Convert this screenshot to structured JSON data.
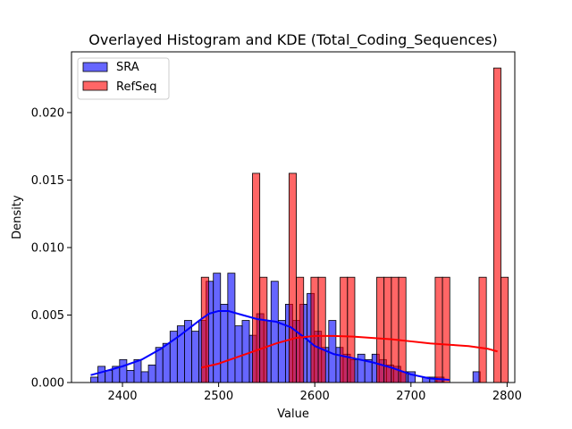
{
  "chart_data": {
    "type": "bar",
    "title": "Overlayed Histogram and KDE (Total_Coding_Sequences)",
    "xlabel": "Value",
    "ylabel": "Density",
    "xlim": [
      2347,
      2808
    ],
    "ylim": [
      0,
      0.0245
    ],
    "xticks": [
      2400,
      2500,
      2600,
      2700,
      2800
    ],
    "yticks": [
      0.0,
      0.005,
      0.01,
      0.015,
      0.02
    ],
    "ytick_labels": [
      "0.000",
      "0.005",
      "0.010",
      "0.015",
      "0.020"
    ],
    "grid": false,
    "legend_position": "top-left",
    "series": [
      {
        "name": "SRA",
        "color": "#0000ff",
        "bin_start": 2367,
        "bin_width": 7.5,
        "values": [
          0.0004,
          0.0012,
          0.0009,
          0.0012,
          0.0017,
          0.0009,
          0.0017,
          0.0008,
          0.0013,
          0.0026,
          0.0029,
          0.0038,
          0.0042,
          0.0046,
          0.0038,
          0.0046,
          0.0075,
          0.0081,
          0.0058,
          0.0081,
          0.0042,
          0.0046,
          0.0035,
          0.0051,
          0.0046,
          0.0075,
          0.0046,
          0.0058,
          0.0046,
          0.0058,
          0.0066,
          0.0038,
          0.0026,
          0.0046,
          0.0026,
          0.0021,
          0.0017,
          0.0021,
          0.0017,
          0.0021,
          0.0017,
          0.0013,
          0.0012,
          0.0008,
          0.0008,
          0.0,
          0.0004,
          0.0004,
          0.0004,
          0.0,
          0.0,
          0.0,
          0.0,
          0.0008
        ],
        "kde": {
          "x": [
            2367,
            2380,
            2400,
            2420,
            2440,
            2460,
            2480,
            2490,
            2500,
            2510,
            2520,
            2540,
            2560,
            2575,
            2590,
            2600,
            2620,
            2640,
            2660,
            2680,
            2700,
            2720,
            2740
          ],
          "y": [
            0.00055,
            0.0008,
            0.0012,
            0.0017,
            0.0025,
            0.0035,
            0.0046,
            0.0051,
            0.0053,
            0.0053,
            0.0051,
            0.0047,
            0.0045,
            0.0041,
            0.0033,
            0.0027,
            0.0021,
            0.0018,
            0.0015,
            0.0011,
            0.0006,
            0.0003,
            0.0002
          ]
        }
      },
      {
        "name": "RefSeq",
        "color": "#ff0000",
        "bin_start": 2482,
        "bin_width": 7.6,
        "values": [
          0.0078,
          0.0,
          0.0,
          0.0,
          0.0,
          0.0,
          0.0,
          0.0155,
          0.0078,
          0.0,
          0.0,
          0.0,
          0.0155,
          0.0078,
          0.0,
          0.0078,
          0.0078,
          0.0,
          0.0,
          0.0078,
          0.0078,
          0.0,
          0.0,
          0.0,
          0.0078,
          0.0078,
          0.0078,
          0.0078,
          0.0,
          0.0,
          0.0,
          0.0,
          0.0078,
          0.0078,
          0.0,
          0.0,
          0.0,
          0.0,
          0.0078,
          0.0,
          0.0233,
          0.0078
        ]
      }
    ],
    "kde_refseq": {
      "x": [
        2482,
        2500,
        2520,
        2540,
        2560,
        2580,
        2600,
        2620,
        2640,
        2660,
        2680,
        2700,
        2720,
        2740,
        2760,
        2780,
        2790
      ],
      "y": [
        0.0011,
        0.0014,
        0.0019,
        0.0024,
        0.0029,
        0.0033,
        0.00345,
        0.00345,
        0.0034,
        0.0033,
        0.0032,
        0.00305,
        0.0029,
        0.0028,
        0.0027,
        0.0025,
        0.0023
      ]
    }
  }
}
